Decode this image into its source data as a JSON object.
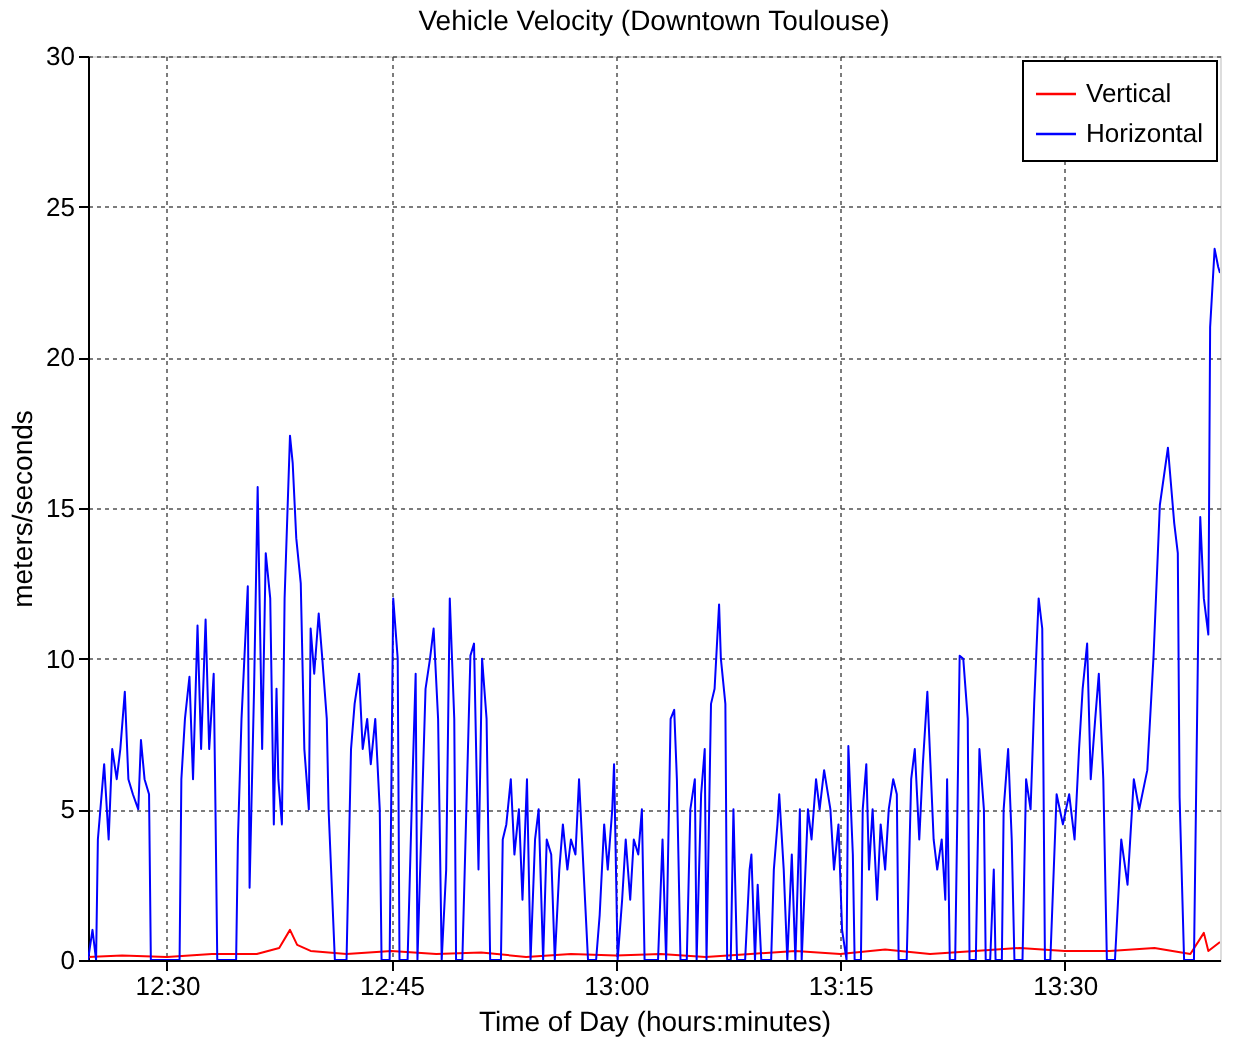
{
  "chart_data": {
    "type": "line",
    "title": "Vehicle Velocity (Downtown Toulouse)",
    "xlabel": "Time of Day (hours:minutes)",
    "ylabel": "meters/seconds",
    "xlim": [
      12.412,
      13.673
    ],
    "xticks": [
      {
        "value": 12.5,
        "label": "12:30"
      },
      {
        "value": 12.75,
        "label": "12:45"
      },
      {
        "value": 13.0,
        "label": "13:00"
      },
      {
        "value": 13.25,
        "label": "13:15"
      },
      {
        "value": 13.5,
        "label": "13:30"
      }
    ],
    "ylim": [
      0,
      30
    ],
    "yticks": [
      0,
      5,
      10,
      15,
      20,
      25,
      30
    ],
    "grid": true,
    "legend": "top right",
    "line_style": "solid",
    "marker": "none",
    "series": [
      {
        "name": "Vertical",
        "color": "#ff0000",
        "x": [
          12.412,
          12.45,
          12.5,
          12.55,
          12.6,
          12.625,
          12.637,
          12.645,
          12.66,
          12.7,
          12.75,
          12.8,
          12.85,
          12.9,
          12.95,
          13.0,
          13.05,
          13.1,
          13.15,
          13.2,
          13.25,
          13.3,
          13.35,
          13.4,
          13.45,
          13.5,
          13.55,
          13.6,
          13.64,
          13.655,
          13.66,
          13.673
        ],
        "values": [
          0.1,
          0.15,
          0.1,
          0.2,
          0.2,
          0.4,
          1.0,
          0.5,
          0.3,
          0.2,
          0.3,
          0.2,
          0.25,
          0.1,
          0.2,
          0.15,
          0.2,
          0.1,
          0.2,
          0.3,
          0.2,
          0.35,
          0.2,
          0.3,
          0.4,
          0.3,
          0.3,
          0.4,
          0.2,
          0.9,
          0.3,
          0.6
        ]
      },
      {
        "name": "Horizontal",
        "color": "#0000ff",
        "x": [
          12.412,
          12.417,
          12.421,
          12.423,
          12.43,
          12.435,
          12.439,
          12.444,
          12.448,
          12.453,
          12.457,
          12.462,
          12.468,
          12.471,
          12.475,
          12.48,
          12.482,
          12.514,
          12.516,
          12.52,
          12.525,
          12.529,
          12.534,
          12.538,
          12.543,
          12.547,
          12.552,
          12.554,
          12.556,
          12.577,
          12.579,
          12.583,
          12.59,
          12.592,
          12.597,
          12.601,
          12.606,
          12.61,
          12.615,
          12.619,
          12.622,
          12.624,
          12.628,
          12.631,
          12.637,
          12.64,
          12.644,
          12.649,
          12.653,
          12.658,
          12.66,
          12.664,
          12.669,
          12.673,
          12.678,
          12.68,
          12.687,
          12.7,
          12.705,
          12.709,
          12.714,
          12.718,
          12.723,
          12.727,
          12.732,
          12.737,
          12.739,
          12.748,
          12.752,
          12.757,
          12.759,
          12.768,
          12.773,
          12.777,
          12.779,
          12.788,
          12.793,
          12.797,
          12.802,
          12.806,
          12.811,
          12.815,
          12.82,
          12.822,
          12.829,
          12.838,
          12.842,
          12.847,
          12.851,
          12.856,
          12.86,
          12.872,
          12.874,
          12.878,
          12.883,
          12.887,
          12.892,
          12.896,
          12.901,
          12.905,
          12.91,
          12.914,
          12.919,
          12.923,
          12.928,
          12.932,
          12.937,
          12.941,
          12.946,
          12.95,
          12.955,
          12.959,
          12.964,
          12.969,
          12.978,
          12.982,
          12.987,
          12.991,
          12.996,
          12.998,
          13.002,
          13.007,
          13.011,
          13.016,
          13.02,
          13.025,
          13.029,
          13.032,
          13.047,
          13.052,
          13.056,
          13.061,
          13.065,
          13.068,
          13.072,
          13.079,
          13.083,
          13.088,
          13.09,
          13.095,
          13.099,
          13.101,
          13.106,
          13.11,
          13.115,
          13.117,
          13.122,
          13.124,
          13.128,
          13.131,
          13.135,
          13.144,
          13.149,
          13.151,
          13.155,
          13.158,
          13.162,
          13.173,
          13.176,
          13.18,
          13.182,
          13.187,
          13.191,
          13.196,
          13.2,
          13.205,
          13.207,
          13.214,
          13.218,
          13.223,
          13.227,
          13.232,
          13.239,
          13.243,
          13.248,
          13.252,
          13.257,
          13.259,
          13.264,
          13.266,
          13.273,
          13.275,
          13.279,
          13.282,
          13.286,
          13.291,
          13.295,
          13.3,
          13.304,
          13.309,
          13.313,
          13.315,
          13.324,
          13.329,
          13.333,
          13.338,
          13.342,
          13.347,
          13.354,
          13.358,
          13.363,
          13.367,
          13.369,
          13.372,
          13.378,
          13.383,
          13.387,
          13.392,
          13.394,
          13.401,
          13.405,
          13.41,
          13.412,
          13.417,
          13.421,
          13.423,
          13.43,
          13.432,
          13.437,
          13.441,
          13.444,
          13.453,
          13.457,
          13.462,
          13.466,
          13.471,
          13.475,
          13.478,
          13.484,
          13.491,
          13.498,
          13.505,
          13.511,
          13.516,
          13.52,
          13.525,
          13.529,
          13.534,
          13.538,
          13.543,
          13.547,
          13.556,
          13.563,
          13.57,
          13.577,
          13.583,
          13.592,
          13.599,
          13.606,
          13.615,
          13.622,
          13.626,
          13.628,
          13.633,
          13.644,
          13.649,
          13.651,
          13.655,
          13.66,
          13.662,
          13.667,
          13.671,
          13.673
        ],
        "values": [
          0,
          1,
          0,
          4,
          6.5,
          4,
          7,
          6,
          7,
          8.9,
          6,
          5.5,
          5,
          7.3,
          6,
          5.5,
          0,
          0,
          6,
          8,
          9.4,
          6,
          11.1,
          7,
          11.3,
          7,
          9.5,
          5,
          0,
          0,
          4,
          8,
          12.4,
          2.4,
          9,
          15.7,
          7,
          13.5,
          12,
          4.5,
          9,
          6,
          4.5,
          12,
          17.4,
          16.5,
          14,
          12.5,
          7,
          5,
          11,
          9.5,
          11.5,
          10,
          8,
          5,
          0,
          0,
          7,
          8.5,
          9.5,
          7,
          8,
          6.5,
          8,
          5,
          0,
          0,
          12,
          10,
          0,
          0,
          5.5,
          9.5,
          0,
          9,
          10,
          11,
          8,
          0,
          3,
          12,
          8,
          0,
          0,
          10.1,
          10.5,
          3,
          10,
          8,
          0,
          0,
          4,
          4.5,
          6,
          3.5,
          5,
          2,
          6,
          0,
          4,
          5,
          0,
          4,
          3.5,
          0,
          3,
          4.5,
          3,
          4,
          3.5,
          6,
          3,
          0,
          0,
          1.5,
          4.5,
          3,
          5,
          6.5,
          0,
          2,
          4,
          2,
          4,
          3.5,
          5,
          0,
          0,
          4,
          0,
          8,
          8.3,
          6,
          0,
          0,
          5,
          6,
          0,
          5.5,
          7,
          0,
          8.5,
          9,
          11.8,
          10,
          8.5,
          0,
          0,
          5,
          0,
          0,
          3,
          3.5,
          0,
          2.5,
          0,
          0,
          3,
          4.5,
          5.5,
          3,
          0,
          3.5,
          0,
          5,
          0,
          5,
          4,
          6,
          5,
          6.3,
          5,
          3,
          4.5,
          1,
          0,
          7.1,
          3.5,
          0,
          0,
          5,
          6.5,
          3,
          5,
          2,
          4.5,
          3,
          5,
          6,
          5.5,
          0,
          0,
          6,
          7,
          4,
          6.5,
          8.9,
          4,
          3,
          4,
          2,
          6,
          0,
          0,
          10.1,
          10,
          8,
          0,
          0,
          7,
          5,
          0,
          0,
          3,
          0,
          0,
          5,
          7,
          4,
          0,
          0,
          6,
          5,
          8.5,
          12,
          11,
          0,
          0,
          5.5,
          4.5,
          5.5,
          4,
          7,
          9,
          10.5,
          6,
          8,
          9.5,
          6,
          0,
          0,
          4,
          2.5,
          6,
          5,
          6.3,
          10.1,
          15.1,
          17,
          14.5,
          13.5,
          5.4,
          0,
          0,
          11.5,
          14.7,
          12,
          10.8,
          21,
          23.6,
          23,
          22.8
        ]
      }
    ]
  }
}
